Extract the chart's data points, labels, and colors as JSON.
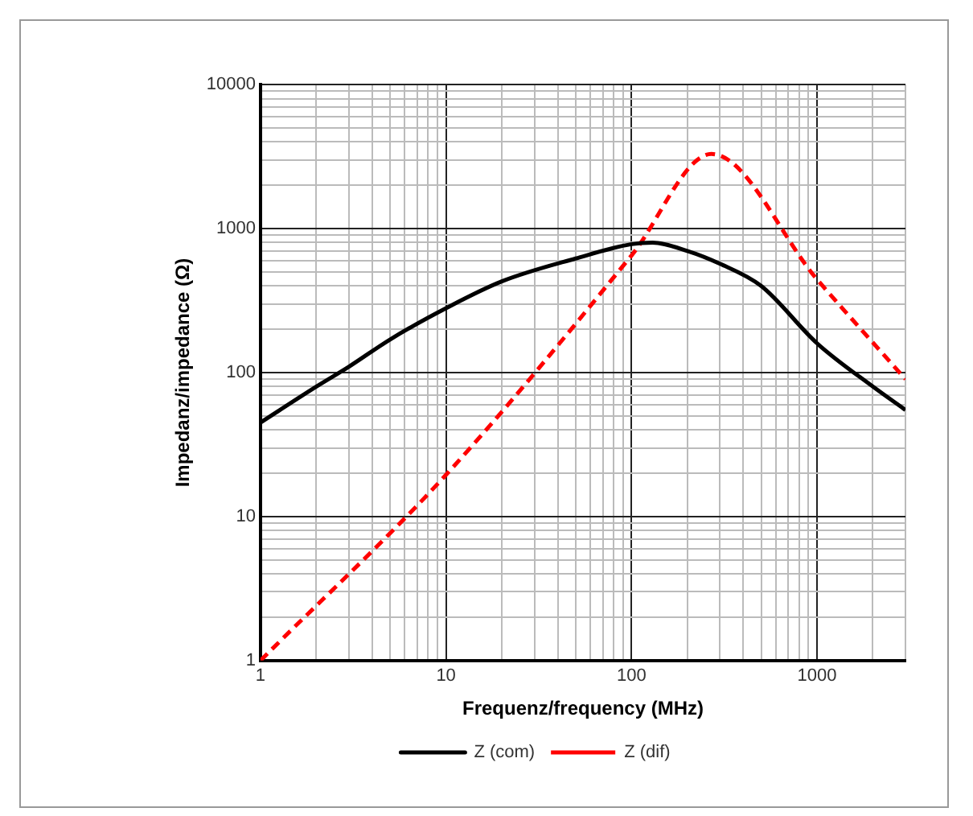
{
  "chart_data": {
    "type": "line",
    "xlabel": "Frequenz/frequency (MHz)",
    "ylabel": "Impedanz/impedance (Ω)",
    "log": "xy",
    "grid": true,
    "legend": "bottom",
    "marker": "none",
    "xlim": [
      1,
      3000
    ],
    "ylim": [
      1,
      10000
    ],
    "xticks": [
      1,
      {
        "value": 2,
        "label": null
      },
      {
        "value": 3,
        "label": null
      },
      {
        "value": 4,
        "label": null
      },
      {
        "value": 5,
        "label": null
      },
      {
        "value": 6,
        "label": null
      },
      {
        "value": 7,
        "label": null
      },
      {
        "value": 8,
        "label": null
      },
      {
        "value": 9,
        "label": null
      },
      10,
      {
        "value": 20,
        "label": null
      },
      {
        "value": 30,
        "label": null
      },
      {
        "value": 40,
        "label": null
      },
      {
        "value": 50,
        "label": null
      },
      {
        "value": 60,
        "label": null
      },
      {
        "value": 70,
        "label": null
      },
      {
        "value": 80,
        "label": null
      },
      {
        "value": 90,
        "label": null
      },
      100,
      {
        "value": 200,
        "label": null
      },
      {
        "value": 300,
        "label": null
      },
      {
        "value": 400,
        "label": null
      },
      {
        "value": 500,
        "label": null
      },
      {
        "value": 600,
        "label": null
      },
      {
        "value": 700,
        "label": null
      },
      {
        "value": 800,
        "label": null
      },
      {
        "value": 900,
        "label": null
      },
      1000,
      {
        "value": 2000,
        "label": null
      },
      {
        "value": 3000,
        "label": null
      }
    ],
    "yticks": [
      1,
      {
        "value": 2,
        "label": null
      },
      {
        "value": 3,
        "label": null
      },
      {
        "value": 4,
        "label": null
      },
      {
        "value": 5,
        "label": null
      },
      {
        "value": 6,
        "label": null
      },
      {
        "value": 7,
        "label": null
      },
      {
        "value": 8,
        "label": null
      },
      {
        "value": 9,
        "label": null
      },
      10,
      {
        "value": 20,
        "label": null
      },
      {
        "value": 30,
        "label": null
      },
      {
        "value": 40,
        "label": null
      },
      {
        "value": 50,
        "label": null
      },
      {
        "value": 60,
        "label": null
      },
      {
        "value": 70,
        "label": null
      },
      {
        "value": 80,
        "label": null
      },
      {
        "value": 90,
        "label": null
      },
      100,
      {
        "value": 200,
        "label": null
      },
      {
        "value": 300,
        "label": null
      },
      {
        "value": 400,
        "label": null
      },
      {
        "value": 500,
        "label": null
      },
      {
        "value": 600,
        "label": null
      },
      {
        "value": 700,
        "label": null
      },
      {
        "value": 800,
        "label": null
      },
      {
        "value": 900,
        "label": null
      },
      1000,
      {
        "value": 2000,
        "label": null
      },
      {
        "value": 3000,
        "label": null
      },
      {
        "value": 4000,
        "label": null
      },
      {
        "value": 5000,
        "label": null
      },
      {
        "value": 6000,
        "label": null
      },
      {
        "value": 7000,
        "label": null
      },
      {
        "value": 8000,
        "label": null
      },
      {
        "value": 9000,
        "label": null
      },
      10000
    ],
    "series": [
      {
        "name": "Z (com)",
        "color": "#000000",
        "line_style": "solid",
        "x": [
          1,
          2,
          3,
          5,
          10,
          20,
          50,
          100,
          130,
          200,
          300,
          500,
          1000,
          2000,
          3000
        ],
        "values": [
          45,
          80,
          110,
          170,
          280,
          430,
          620,
          780,
          800,
          700,
          570,
          400,
          160,
          80,
          55
        ]
      },
      {
        "name": "Z (dif)",
        "color": "#ff0000",
        "line_style": "dashed",
        "x": [
          1,
          10,
          100,
          270,
          1000,
          3000
        ],
        "values": [
          1,
          19.5,
          650,
          3300,
          445,
          90
        ]
      }
    ]
  }
}
